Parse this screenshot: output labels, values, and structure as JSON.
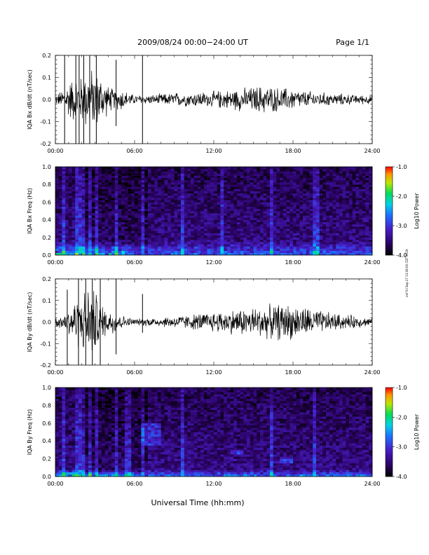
{
  "header": {
    "title": "2009/08/24  00:00−24:00 UT",
    "page": "Page 1/1"
  },
  "footer": {
    "xlabel": "Universal Time (hh:mm)",
    "side_note": "rmf Fri Sep 27 13:09:00 CDT 2019"
  },
  "chart_data": [
    {
      "type": "line",
      "panel": "IQA Bx dB/dt",
      "ylabel": "IQA Bx dB/dt (nT/sec)",
      "xlim": [
        0,
        24
      ],
      "ylim": [
        -0.2,
        0.2
      ],
      "x_tick_labels": [
        "00:00",
        "06:00",
        "12:00",
        "18:00",
        "24:00"
      ],
      "y_tick_labels": [
        "-0.2",
        "-0.1",
        "0.0",
        "0.1",
        "0.2"
      ],
      "series": [
        {
          "x": [
            0,
            0.5,
            1,
            1.5,
            2,
            2.5,
            3,
            3.5,
            4,
            4.5,
            5,
            5.5,
            6,
            6.5,
            7,
            7.5,
            8,
            8.5,
            9,
            9.5,
            10,
            10.5,
            11,
            11.5,
            12,
            12.5,
            13,
            13.5,
            14,
            14.5,
            15,
            15.5,
            16,
            16.5,
            17,
            17.5,
            18,
            18.5,
            19,
            19.5,
            20,
            20.5,
            21,
            21.5,
            22,
            22.5,
            23,
            23.5,
            24
          ],
          "envelope": [
            0.02,
            0.04,
            0.08,
            0.1,
            0.1,
            0.14,
            0.12,
            0.1,
            0.06,
            0.04,
            0.05,
            0.03,
            0.02,
            0.02,
            0.02,
            0.02,
            0.025,
            0.025,
            0.03,
            0.03,
            0.03,
            0.03,
            0.035,
            0.03,
            0.035,
            0.04,
            0.04,
            0.045,
            0.05,
            0.05,
            0.055,
            0.06,
            0.06,
            0.055,
            0.05,
            0.05,
            0.045,
            0.04,
            0.035,
            0.035,
            0.03,
            0.03,
            0.025,
            0.025,
            0.025,
            0.02,
            0.02,
            0.02,
            0.02
          ]
        }
      ],
      "spikes": [
        {
          "x": 0.7,
          "min": -0.2,
          "max": 0.2
        },
        {
          "x": 1.55,
          "min": -0.2,
          "max": 0.2
        },
        {
          "x": 1.8,
          "min": -0.2,
          "max": 0.2
        },
        {
          "x": 2.15,
          "min": -0.2,
          "max": 0.2
        },
        {
          "x": 2.6,
          "min": -0.2,
          "max": 0.2
        },
        {
          "x": 3.1,
          "min": -0.2,
          "max": 0.2
        },
        {
          "x": 4.6,
          "min": -0.12,
          "max": 0.18
        },
        {
          "x": 6.6,
          "min": -0.2,
          "max": 0.2
        }
      ]
    },
    {
      "type": "heatmap",
      "panel": "IQA Bx Freq",
      "ylabel": "IQA Bx Freq (Hz)",
      "xlim": [
        0,
        24
      ],
      "ylim": [
        0.0,
        1.0
      ],
      "x_tick_labels": [
        "00:00",
        "06:00",
        "12:00",
        "18:00",
        "24:00"
      ],
      "y_tick_labels": [
        "0.0",
        "0.2",
        "0.4",
        "0.6",
        "0.8",
        "1.0"
      ],
      "colorbar": {
        "label": "Log10 Power",
        "range": [
          -4.0,
          -1.0
        ],
        "tick_labels": [
          "-4.0",
          "-3.0",
          "-2.0",
          "-1.0"
        ]
      },
      "vertical_streaks_hours": [
        0.7,
        1.55,
        1.8,
        2.15,
        2.6,
        3.1,
        4.6,
        6.6,
        9.7,
        12.6,
        16.3,
        19.6,
        19.9
      ],
      "low_freq_enhancement": {
        "freq_max_hz": 0.1,
        "log10_power_peak": -2.5
      }
    },
    {
      "type": "line",
      "panel": "IQA By dB/dt",
      "ylabel": "IQA By dB/dt (nT/sec)",
      "xlim": [
        0,
        24
      ],
      "ylim": [
        -0.2,
        0.2
      ],
      "x_tick_labels": [
        "00:00",
        "06:00",
        "12:00",
        "18:00",
        "24:00"
      ],
      "y_tick_labels": [
        "-0.2",
        "-0.1",
        "0.0",
        "0.1",
        "0.2"
      ],
      "series": [
        {
          "x": [
            0,
            0.5,
            1,
            1.5,
            2,
            2.5,
            3,
            3.5,
            4,
            4.5,
            5,
            5.5,
            6,
            6.5,
            7,
            7.5,
            8,
            8.5,
            9,
            9.5,
            10,
            10.5,
            11,
            11.5,
            12,
            12.5,
            13,
            13.5,
            14,
            14.5,
            15,
            15.5,
            16,
            16.5,
            17,
            17.5,
            18,
            18.5,
            19,
            19.5,
            20,
            20.5,
            21,
            21.5,
            22,
            22.5,
            23,
            23.5,
            24
          ],
          "envelope": [
            0.02,
            0.03,
            0.06,
            0.1,
            0.12,
            0.16,
            0.14,
            0.08,
            0.05,
            0.06,
            0.03,
            0.02,
            0.015,
            0.015,
            0.02,
            0.02,
            0.02,
            0.025,
            0.025,
            0.03,
            0.03,
            0.035,
            0.04,
            0.04,
            0.045,
            0.05,
            0.05,
            0.055,
            0.06,
            0.06,
            0.065,
            0.07,
            0.07,
            0.075,
            0.08,
            0.08,
            0.075,
            0.07,
            0.065,
            0.06,
            0.05,
            0.045,
            0.04,
            0.035,
            0.03,
            0.03,
            0.025,
            0.02,
            0.02
          ]
        }
      ],
      "spikes": [
        {
          "x": 0.9,
          "min": -0.2,
          "max": 0.15
        },
        {
          "x": 1.75,
          "min": -0.2,
          "max": 0.2
        },
        {
          "x": 2.3,
          "min": -0.2,
          "max": 0.2
        },
        {
          "x": 2.8,
          "min": -0.2,
          "max": 0.2
        },
        {
          "x": 3.4,
          "min": -0.2,
          "max": 0.2
        },
        {
          "x": 4.6,
          "min": -0.15,
          "max": 0.2
        },
        {
          "x": 6.6,
          "min": -0.05,
          "max": 0.13
        }
      ]
    },
    {
      "type": "heatmap",
      "panel": "IQA By Freq",
      "ylabel": "IQA By Freq (Hz)",
      "xlim": [
        0,
        24
      ],
      "ylim": [
        0.0,
        1.0
      ],
      "x_tick_labels": [
        "00:00",
        "06:00",
        "12:00",
        "18:00",
        "24:00"
      ],
      "y_tick_labels": [
        "0.0",
        "0.2",
        "0.4",
        "0.6",
        "0.8",
        "1.0"
      ],
      "colorbar": {
        "label": "Log10 Power",
        "range": [
          -4.0,
          -1.0
        ],
        "tick_labels": [
          "-4.0",
          "-3.0",
          "-2.0",
          "-1.0"
        ]
      },
      "vertical_streaks_hours": [
        0.7,
        1.55,
        1.8,
        2.15,
        2.6,
        3.1,
        4.6,
        5.5,
        6.6,
        9.7,
        16.3,
        19.6
      ],
      "low_freq_enhancement": {
        "freq_max_hz": 0.05,
        "log10_power_peak": -2.3
      },
      "features": [
        {
          "x": [
            6.5,
            8.0
          ],
          "freq_hz": [
            0.35,
            0.6
          ]
        },
        {
          "x": [
            13.3,
            14.2
          ],
          "freq_hz": [
            0.25,
            0.3
          ]
        },
        {
          "x": [
            17.0,
            18.0
          ],
          "freq_hz": [
            0.15,
            0.2
          ]
        }
      ]
    }
  ]
}
